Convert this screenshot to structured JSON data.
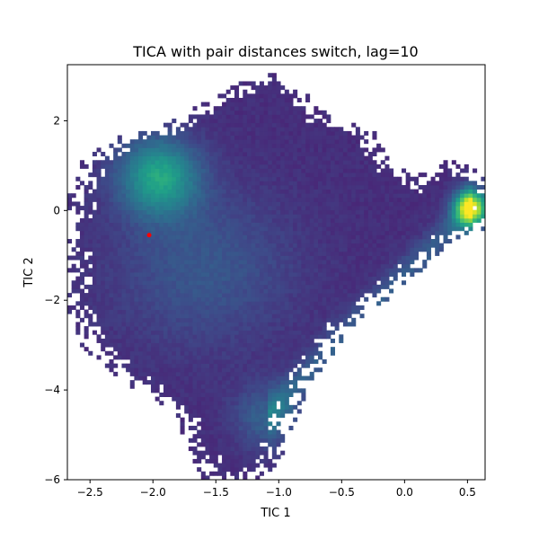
{
  "chart_data": {
    "type": "heatmap",
    "title": "TICA with pair distances switch, lag=10",
    "xlabel": "TIC 1",
    "ylabel": "TIC 2",
    "xlim": [
      -2.68,
      0.64
    ],
    "ylim": [
      -6.0,
      3.25
    ],
    "xticks": [
      -2.5,
      -2.0,
      -1.5,
      -1.0,
      -0.5,
      0.0,
      0.5
    ],
    "xtick_labels": [
      "−2.5",
      "−2.0",
      "−1.5",
      "−1.0",
      "−0.5",
      "0.0",
      "0.5"
    ],
    "yticks": [
      -6,
      -4,
      -2,
      0,
      2
    ],
    "ytick_labels": [
      "−6",
      "−4",
      "−2",
      "0",
      "2"
    ],
    "colormap": "viridis",
    "grid": false,
    "legend": "none",
    "high_density_regions": [
      {
        "tic1": 0.53,
        "tic2": 0.05,
        "level": "highest"
      },
      {
        "tic1": -1.95,
        "tic2": 0.75,
        "level": "high"
      },
      {
        "tic1": -1.1,
        "tic2": -4.6,
        "level": "medium"
      }
    ],
    "marker": {
      "tic1": -2.03,
      "tic2": -0.55,
      "color": "#ff0000"
    }
  }
}
